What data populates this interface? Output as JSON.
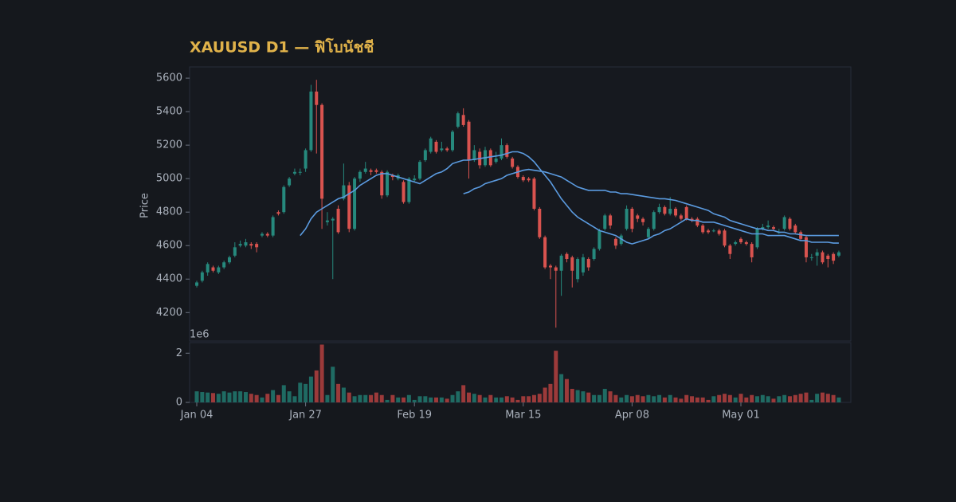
{
  "chart_data": {
    "type": "candlestick",
    "title": "XAUUSD D1 — ฟิโบนัชชี",
    "ylabel": "Price",
    "up_color": "#26897d",
    "down_color": "#d9534f",
    "categories": [
      "Jan 04",
      null,
      null,
      null,
      null,
      null,
      null,
      null,
      null,
      null,
      null,
      null,
      null,
      null,
      null,
      null,
      null,
      null,
      null,
      null,
      "Jan 27",
      null,
      null,
      null,
      null,
      null,
      null,
      null,
      null,
      null,
      null,
      null,
      null,
      null,
      null,
      null,
      null,
      null,
      null,
      null,
      "Feb 19",
      null,
      null,
      null,
      null,
      null,
      null,
      null,
      null,
      null,
      null,
      null,
      null,
      null,
      null,
      null,
      null,
      null,
      null,
      null,
      "Mar 15",
      null,
      null,
      null,
      null,
      null,
      null,
      null,
      null,
      null,
      null,
      null,
      null,
      null,
      null,
      null,
      null,
      null,
      null,
      null,
      "Apr 08",
      null,
      null,
      null,
      null,
      null,
      null,
      null,
      null,
      null,
      null,
      null,
      null,
      null,
      null,
      null,
      null,
      null,
      null,
      null,
      "May 01",
      null,
      null,
      null,
      null,
      null,
      null,
      null,
      null,
      null,
      null,
      null,
      null,
      null,
      null,
      null,
      null,
      null,
      null
    ],
    "open": [
      4360,
      4390,
      4440,
      4470,
      4440,
      4470,
      4500,
      4540,
      4600,
      4600,
      4610,
      4610,
      4660,
      4670,
      4660,
      4800,
      4800,
      4960,
      5030,
      5040,
      5060,
      5170,
      5520,
      5440,
      4740,
      4750,
      4820,
      4880,
      4960,
      4700,
      5000,
      5040,
      5050,
      5050,
      5040,
      4900,
      5020,
      5000,
      4980,
      4860,
      4990,
      5000,
      5110,
      5160,
      5220,
      5170,
      5180,
      5170,
      5310,
      5380,
      5340,
      5110,
      5160,
      5080,
      5170,
      5100,
      5120,
      5200,
      5120,
      5070,
      5010,
      5000,
      5000,
      4820,
      4650,
      4480,
      4470,
      4450,
      4550,
      4530,
      4400,
      4440,
      4520,
      4520,
      4580,
      4700,
      4780,
      4640,
      4610,
      4700,
      4820,
      4780,
      4760,
      4650,
      4700,
      4800,
      4830,
      4790,
      4820,
      4780,
      4830,
      4760,
      4760,
      4720,
      4690,
      4690,
      4690,
      4690,
      4600,
      4610,
      4640,
      4620,
      4610,
      4590,
      4700,
      4710,
      4710,
      4680,
      4700,
      4760,
      4720,
      4680,
      4650,
      4530,
      4540,
      4560,
      4540,
      4550,
      4540
    ],
    "high": [
      4390,
      4450,
      4500,
      4480,
      4480,
      4510,
      4540,
      4620,
      4630,
      4640,
      4620,
      4620,
      4680,
      4680,
      4780,
      4810,
      4960,
      5010,
      5060,
      5060,
      5180,
      5560,
      5590,
      5450,
      4800,
      4770,
      4840,
      5090,
      4980,
      5010,
      5050,
      5100,
      5060,
      5060,
      5050,
      5050,
      5030,
      5030,
      4990,
      5010,
      5020,
      5110,
      5180,
      5250,
      5230,
      5220,
      5190,
      5290,
      5400,
      5420,
      5350,
      5200,
      5180,
      5190,
      5180,
      5160,
      5240,
      5210,
      5130,
      5080,
      5020,
      5010,
      5010,
      4830,
      4660,
      4490,
      4480,
      4550,
      4560,
      4540,
      4530,
      4550,
      4530,
      4590,
      4700,
      4790,
      4790,
      4650,
      4670,
      4840,
      4830,
      4790,
      4770,
      4710,
      4810,
      4850,
      4840,
      4890,
      4830,
      4790,
      4840,
      4770,
      4770,
      4730,
      4700,
      4700,
      4700,
      4700,
      4610,
      4630,
      4650,
      4630,
      4620,
      4710,
      4730,
      4750,
      4720,
      4700,
      4780,
      4770,
      4730,
      4690,
      4660,
      4550,
      4580,
      4570,
      4550,
      4560,
      4570
    ],
    "low": [
      4350,
      4380,
      4420,
      4440,
      4430,
      4460,
      4490,
      4530,
      4590,
      4590,
      4580,
      4560,
      4650,
      4650,
      4650,
      4780,
      4790,
      4950,
      5020,
      5020,
      5040,
      5160,
      5150,
      4700,
      4720,
      4400,
      4670,
      4870,
      4680,
      4690,
      4980,
      5030,
      5020,
      5030,
      4880,
      4890,
      4990,
      4990,
      4850,
      4850,
      4980,
      4990,
      5100,
      5150,
      5150,
      5160,
      5160,
      5160,
      5300,
      5310,
      5000,
      5100,
      5060,
      5070,
      5070,
      5090,
      5110,
      5120,
      5060,
      5000,
      4980,
      4980,
      4810,
      4640,
      4460,
      4400,
      4110,
      4300,
      4500,
      4350,
      4380,
      4420,
      4450,
      4510,
      4570,
      4690,
      4700,
      4580,
      4600,
      4690,
      4680,
      4740,
      4720,
      4640,
      4690,
      4790,
      4780,
      4780,
      4770,
      4750,
      4750,
      4740,
      4710,
      4670,
      4670,
      4680,
      4660,
      4590,
      4520,
      4600,
      4610,
      4600,
      4500,
      4580,
      4690,
      4700,
      4690,
      4670,
      4690,
      4690,
      4670,
      4630,
      4500,
      4510,
      4480,
      4490,
      4470,
      4490,
      4530
    ],
    "close": [
      4380,
      4440,
      4490,
      4450,
      4470,
      4500,
      4530,
      4590,
      4610,
      4620,
      4600,
      4590,
      4670,
      4660,
      4770,
      4790,
      4950,
      5000,
      5040,
      5040,
      5170,
      5520,
      5440,
      4880,
      4750,
      4760,
      4680,
      4960,
      4700,
      5000,
      5040,
      5060,
      5040,
      5040,
      4900,
      5040,
      5010,
      5020,
      4860,
      5000,
      5000,
      5100,
      5170,
      5240,
      5160,
      5180,
      5170,
      5280,
      5390,
      5320,
      5110,
      5170,
      5080,
      5170,
      5080,
      5120,
      5200,
      5130,
      5070,
      5010,
      4990,
      4990,
      4820,
      4650,
      4470,
      4470,
      4450,
      4540,
      4520,
      4450,
      4520,
      4530,
      4470,
      4580,
      4690,
      4780,
      4720,
      4600,
      4660,
      4820,
      4700,
      4760,
      4740,
      4700,
      4800,
      4830,
      4790,
      4820,
      4780,
      4760,
      4760,
      4750,
      4720,
      4680,
      4680,
      4690,
      4670,
      4600,
      4550,
      4620,
      4620,
      4610,
      4530,
      4700,
      4710,
      4720,
      4700,
      4680,
      4770,
      4700,
      4680,
      4640,
      4530,
      4530,
      4560,
      4500,
      4520,
      4510,
      4560
    ],
    "ylim": [
      4030,
      5667
    ],
    "yticks": [
      4200,
      4400,
      4600,
      4800,
      5000,
      5200,
      5400,
      5600
    ],
    "lines": [
      {
        "color": "#5b9be0",
        "values": [
          null,
          null,
          null,
          null,
          null,
          null,
          null,
          null,
          null,
          null,
          null,
          null,
          null,
          null,
          null,
          null,
          null,
          null,
          null,
          4660,
          4700,
          4760,
          4800,
          4820,
          4840,
          4860,
          4880,
          4890,
          4910,
          4930,
          4960,
          4980,
          5000,
          5020,
          5030,
          5030,
          5020,
          5010,
          5000,
          4990,
          4980,
          4970,
          4990,
          5010,
          5030,
          5040,
          5060,
          5090,
          5100,
          5110,
          5110,
          5115,
          5120,
          5125,
          5130,
          5135,
          5140,
          5150,
          5160,
          5160,
          5150,
          5130,
          5100,
          5060,
          5020,
          4980,
          4930,
          4880,
          4840,
          4800,
          4770,
          4750,
          4730,
          4710,
          4690,
          4680,
          4670,
          4660,
          4640,
          4620,
          4610,
          4620,
          4630,
          4640,
          4660,
          4670,
          4690,
          4700,
          4720,
          4740,
          4760,
          4750,
          4750,
          4740,
          4740,
          4740,
          4730,
          4720,
          4710,
          4700,
          4690,
          4680,
          4670,
          4670,
          4670,
          4660,
          4660,
          4660,
          4660,
          4650,
          4640,
          4630,
          4630,
          4620,
          4620,
          4620,
          4620,
          4615,
          4615
        ]
      },
      {
        "color": "#5b9be0",
        "values": [
          null,
          null,
          null,
          null,
          null,
          null,
          null,
          null,
          null,
          null,
          null,
          null,
          null,
          null,
          null,
          null,
          null,
          null,
          null,
          null,
          null,
          null,
          null,
          null,
          null,
          null,
          null,
          null,
          null,
          null,
          null,
          null,
          null,
          null,
          null,
          null,
          null,
          null,
          null,
          null,
          null,
          null,
          null,
          null,
          null,
          null,
          null,
          null,
          null,
          4910,
          4920,
          4940,
          4950,
          4970,
          4980,
          4990,
          5000,
          5020,
          5030,
          5040,
          5050,
          5055,
          5050,
          5045,
          5040,
          5030,
          5020,
          5010,
          4990,
          4970,
          4950,
          4940,
          4930,
          4930,
          4930,
          4930,
          4920,
          4920,
          4910,
          4910,
          4905,
          4900,
          4895,
          4890,
          4885,
          4880,
          4880,
          4875,
          4870,
          4860,
          4850,
          4840,
          4830,
          4820,
          4810,
          4790,
          4780,
          4770,
          4750,
          4740,
          4730,
          4720,
          4710,
          4700,
          4700,
          4690,
          4690,
          4680,
          4680,
          4670,
          4670,
          4665,
          4660,
          4660,
          4660,
          4660,
          4660,
          4660,
          4660
        ]
      }
    ],
    "volume": {
      "offset_label": "1e6",
      "ylim": [
        0,
        2.43
      ],
      "yticks": [
        0,
        2
      ],
      "up_color": "#1f6b63",
      "down_color": "#9c3a3a",
      "values": [
        0.45,
        0.42,
        0.4,
        0.38,
        0.35,
        0.45,
        0.4,
        0.45,
        0.45,
        0.42,
        0.35,
        0.3,
        0.2,
        0.35,
        0.5,
        0.3,
        0.7,
        0.45,
        0.25,
        0.8,
        0.75,
        1.05,
        1.3,
        2.35,
        0.3,
        1.45,
        0.75,
        0.6,
        0.4,
        0.25,
        0.3,
        0.3,
        0.3,
        0.4,
        0.3,
        0.1,
        0.3,
        0.2,
        0.2,
        0.3,
        0.1,
        0.25,
        0.25,
        0.2,
        0.2,
        0.2,
        0.15,
        0.3,
        0.45,
        0.7,
        0.4,
        0.35,
        0.3,
        0.2,
        0.3,
        0.2,
        0.2,
        0.25,
        0.2,
        0.1,
        0.25,
        0.25,
        0.3,
        0.35,
        0.6,
        0.75,
        2.1,
        1.15,
        0.95,
        0.55,
        0.5,
        0.45,
        0.4,
        0.3,
        0.3,
        0.55,
        0.45,
        0.3,
        0.2,
        0.3,
        0.25,
        0.3,
        0.25,
        0.3,
        0.25,
        0.3,
        0.2,
        0.3,
        0.2,
        0.15,
        0.3,
        0.25,
        0.2,
        0.2,
        0.1,
        0.25,
        0.3,
        0.35,
        0.3,
        0.2,
        0.35,
        0.2,
        0.3,
        0.25,
        0.3,
        0.25,
        0.15,
        0.25,
        0.3,
        0.25,
        0.3,
        0.35,
        0.4,
        0.1,
        0.35,
        0.4,
        0.35,
        0.3,
        0.2
      ]
    }
  }
}
